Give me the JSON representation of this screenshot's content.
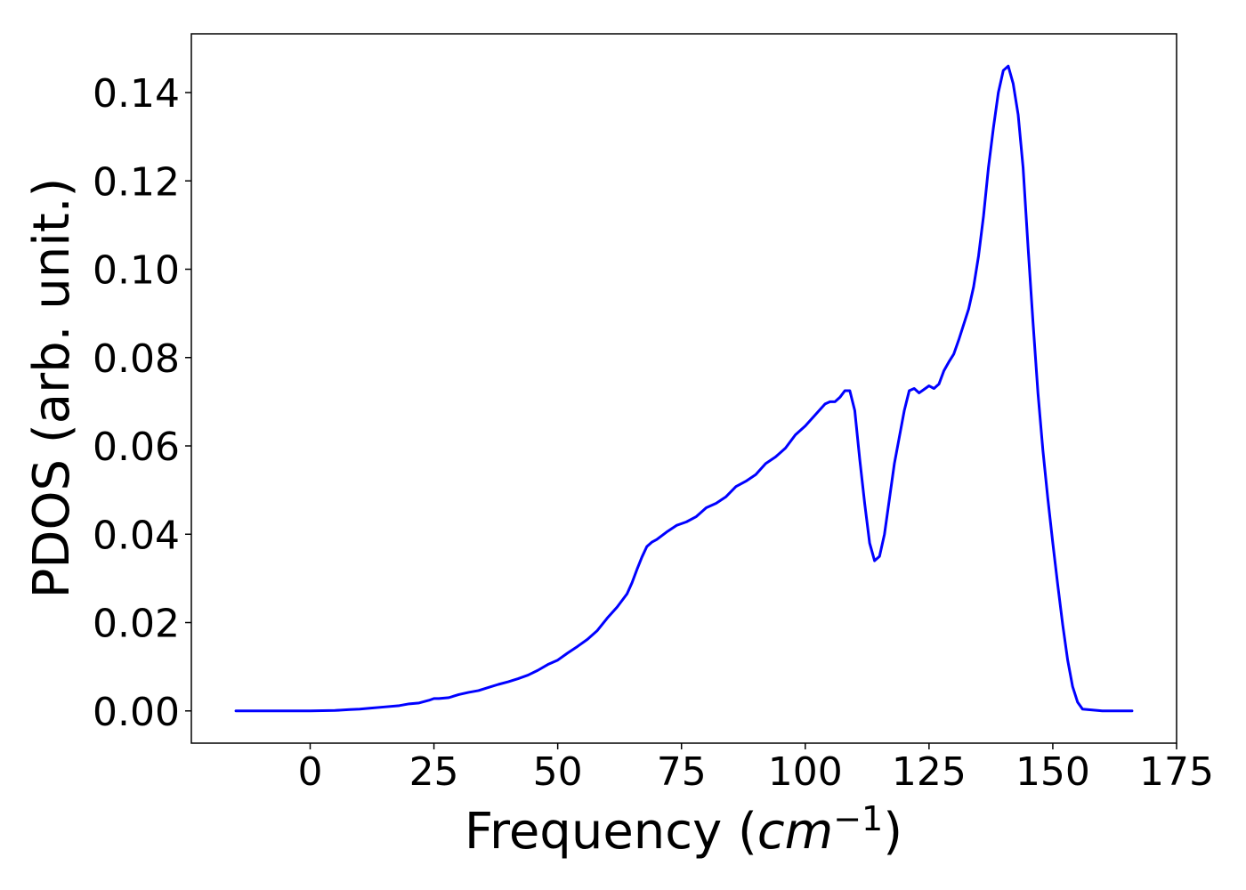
{
  "chart_data": {
    "type": "line",
    "title": "",
    "xlabel": "Frequency (",
    "xlabel_math_base": "cm",
    "xlabel_math_exp": "−1",
    "xlabel_end": ")",
    "ylabel": "PDOS (arb. unit.)",
    "xlim": [
      -24,
      175
    ],
    "ylim": [
      -0.0073,
      0.1533
    ],
    "xticks": [
      0,
      25,
      50,
      75,
      100,
      125,
      150,
      175
    ],
    "xtick_labels": [
      "0",
      "25",
      "50",
      "75",
      "100",
      "125",
      "150",
      "175"
    ],
    "yticks": [
      0.0,
      0.02,
      0.04,
      0.06,
      0.08,
      0.1,
      0.12,
      0.14
    ],
    "ytick_labels": [
      "0.00",
      "0.02",
      "0.04",
      "0.06",
      "0.08",
      "0.10",
      "0.12",
      "0.14"
    ],
    "grid": false,
    "series": [
      {
        "color": "#0000ff",
        "x": [
          -15,
          0,
          5,
          8,
          10,
          12,
          15,
          18,
          20,
          22,
          24,
          25,
          26,
          28,
          30,
          32,
          34,
          36,
          38,
          40,
          42,
          44,
          46,
          48,
          50,
          52,
          54,
          56,
          58,
          60,
          62,
          64,
          65,
          66,
          67,
          68,
          69,
          70,
          72,
          74,
          76,
          78,
          80,
          82,
          84,
          86,
          88,
          90,
          92,
          94,
          96,
          98,
          100,
          102,
          104,
          105,
          106,
          107,
          108,
          109,
          110,
          111,
          112,
          113,
          114,
          115,
          116,
          117,
          118,
          119,
          120,
          121,
          122,
          123,
          124,
          125,
          126,
          127,
          128,
          129,
          130,
          131,
          132,
          133,
          134,
          135,
          136,
          137,
          138,
          139,
          140,
          141,
          142,
          143,
          144,
          145,
          146,
          147,
          148,
          149,
          150,
          151,
          152,
          153,
          154,
          155,
          156,
          160,
          166
        ],
        "values": [
          0,
          0,
          0.0001,
          0.0003,
          0.0004,
          0.0006,
          0.0009,
          0.0012,
          0.0016,
          0.0018,
          0.0024,
          0.0028,
          0.0028,
          0.003,
          0.0037,
          0.0042,
          0.0046,
          0.0053,
          0.006,
          0.0066,
          0.0073,
          0.0081,
          0.0092,
          0.0105,
          0.0115,
          0.0131,
          0.0146,
          0.0162,
          0.0182,
          0.021,
          0.0235,
          0.0265,
          0.029,
          0.032,
          0.0348,
          0.0372,
          0.0382,
          0.0388,
          0.0405,
          0.042,
          0.0428,
          0.044,
          0.046,
          0.047,
          0.0485,
          0.0508,
          0.052,
          0.0535,
          0.056,
          0.0575,
          0.0595,
          0.0625,
          0.0645,
          0.067,
          0.0695,
          0.07,
          0.07,
          0.071,
          0.0725,
          0.0725,
          0.068,
          0.057,
          0.047,
          0.038,
          0.034,
          0.035,
          0.04,
          0.048,
          0.056,
          0.062,
          0.068,
          0.0725,
          0.073,
          0.072,
          0.0728,
          0.0736,
          0.073,
          0.074,
          0.077,
          0.079,
          0.0808,
          0.084,
          0.0875,
          0.091,
          0.096,
          0.103,
          0.112,
          0.123,
          0.132,
          0.14,
          0.145,
          0.146,
          0.142,
          0.135,
          0.123,
          0.105,
          0.088,
          0.072,
          0.059,
          0.048,
          0.038,
          0.0285,
          0.0195,
          0.0115,
          0.0055,
          0.002,
          0.0004,
          0,
          0
        ]
      }
    ]
  }
}
